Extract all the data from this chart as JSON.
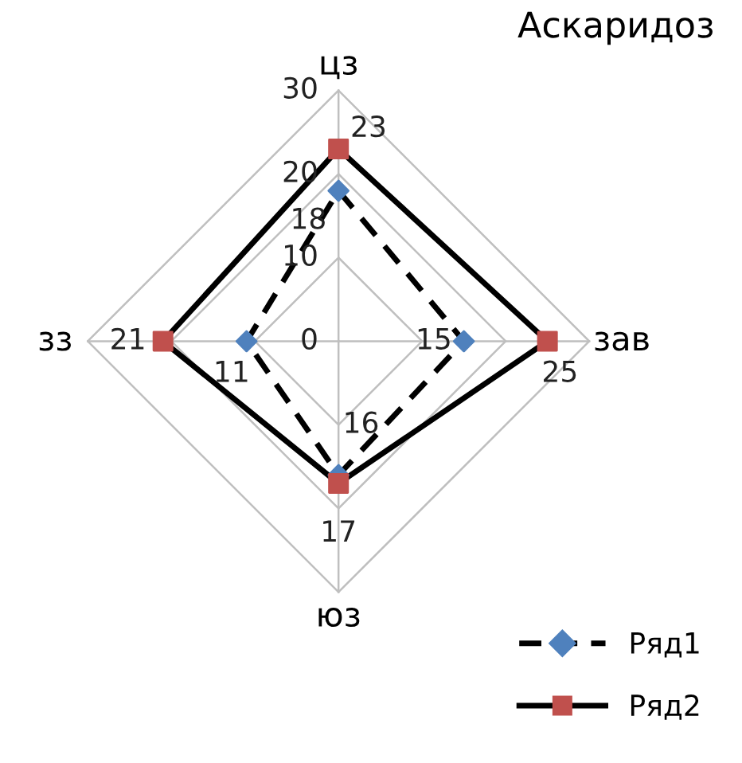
{
  "chart_data": {
    "type": "radar",
    "title": "Аскаридоз",
    "categories": [
      "цз",
      "зав",
      "юз",
      "зз"
    ],
    "series": [
      {
        "name": "Ряд1",
        "color": "#000000",
        "colors": [
          "#4f81bd",
          "#4f81bd",
          "#4f81bd",
          "#4f81bd"
        ],
        "values": [
          18,
          15,
          16,
          11
        ],
        "marker": "diamond",
        "line_style": "dashed"
      },
      {
        "name": "Ряд2",
        "color": "#000000",
        "colors": [
          "#c0504d",
          "#c0504d",
          "#c0504d",
          "#c0504d"
        ],
        "values": [
          23,
          25,
          17,
          21
        ],
        "marker": "square",
        "line_style": "solid"
      }
    ],
    "ylim": [
      0,
      30
    ],
    "yticks": [
      0,
      10,
      20,
      30
    ],
    "grid": true,
    "legend": "bottom right",
    "data_labels": true
  }
}
